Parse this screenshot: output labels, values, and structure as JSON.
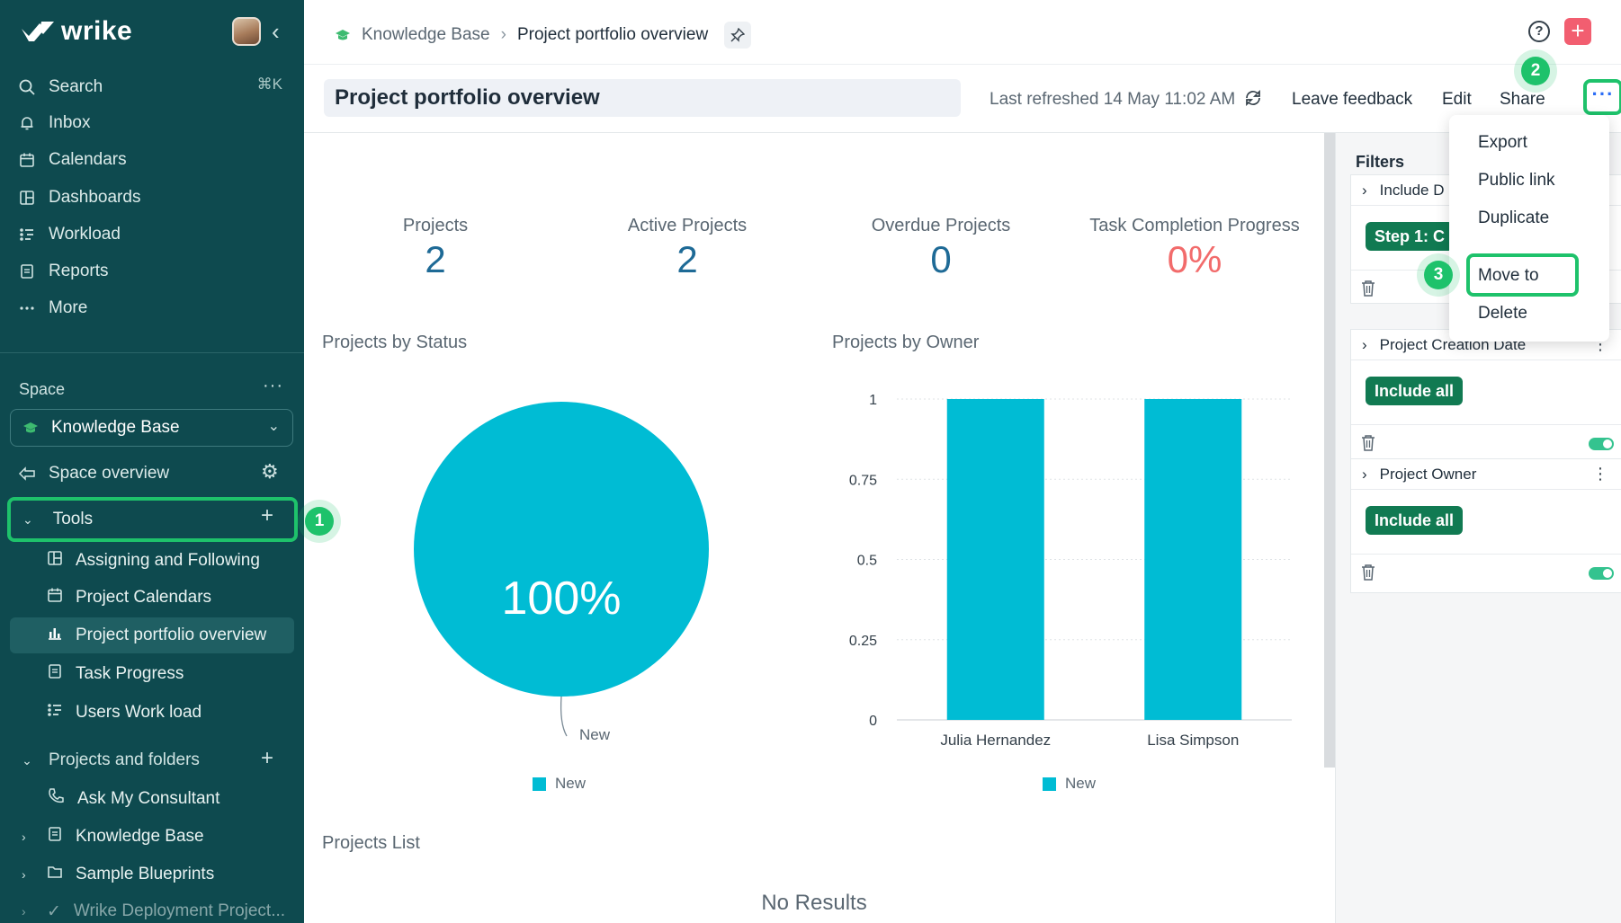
{
  "app": {
    "brand": "wrike"
  },
  "sidebar": {
    "search_label": "Search",
    "search_shortcut": "⌘K",
    "nav": [
      {
        "label": "Inbox",
        "icon": "bell-icon"
      },
      {
        "label": "Calendars",
        "icon": "calendar-icon"
      },
      {
        "label": "Dashboards",
        "icon": "dashboard-icon"
      },
      {
        "label": "Workload",
        "icon": "workload-icon"
      },
      {
        "label": "Reports",
        "icon": "reports-icon"
      },
      {
        "label": "More",
        "icon": "more-dots-icon"
      }
    ],
    "space_label": "Space",
    "space_name": "Knowledge Base",
    "space_overview": "Space overview",
    "tools_label": "Tools",
    "tools_items": [
      {
        "label": "Assigning and Following"
      },
      {
        "label": "Project Calendars"
      },
      {
        "label": "Project portfolio overview",
        "active": true
      },
      {
        "label": "Task Progress"
      },
      {
        "label": "Users Work load"
      }
    ],
    "projects_label": "Projects and folders",
    "project_items": [
      {
        "label": "Ask My Consultant"
      },
      {
        "label": "Knowledge Base"
      },
      {
        "label": "Sample Blueprints"
      },
      {
        "label": "Wrike Deployment Project..."
      }
    ]
  },
  "header": {
    "breadcrumb_space": "Knowledge Base",
    "breadcrumb_page": "Project portfolio overview",
    "title": "Project portfolio overview",
    "last_refreshed": "Last refreshed 14 May 11:02 AM",
    "leave_feedback": "Leave feedback",
    "edit": "Edit",
    "share": "Share",
    "more": "···"
  },
  "badges": {
    "b1": "1",
    "b2": "2",
    "b3": "3"
  },
  "kpis": [
    {
      "label": "Projects",
      "value": "2"
    },
    {
      "label": "Active Projects",
      "value": "2"
    },
    {
      "label": "Overdue Projects",
      "value": "0"
    },
    {
      "label": "Task Completion Progress",
      "value": "0%"
    }
  ],
  "sections": {
    "status": "Projects by Status",
    "owner": "Projects by Owner",
    "list": "Projects List",
    "no_results": "No Results"
  },
  "chart_data": [
    {
      "type": "pie",
      "title": "Projects by Status",
      "slices": [
        {
          "label": "New",
          "value": 100,
          "display": "100%"
        }
      ],
      "legend": [
        "New"
      ],
      "colors": [
        "#00bcd4"
      ]
    },
    {
      "type": "bar",
      "title": "Projects by Owner",
      "categories": [
        "Julia Hernandez",
        "Lisa Simpson"
      ],
      "series": [
        {
          "name": "New",
          "values": [
            1,
            1
          ]
        }
      ],
      "ylim": [
        0,
        1
      ],
      "yticks": [
        "0",
        "0.25",
        "0.5",
        "0.75",
        "1"
      ],
      "legend": [
        "New"
      ],
      "colors": [
        "#00bcd4"
      ]
    }
  ],
  "filters": {
    "title": "Filters",
    "cards": [
      {
        "header": "Include D",
        "pill": "Step 1: C"
      },
      {
        "header": "Project Creation Date",
        "pill": "Include all"
      },
      {
        "header": "Project Owner",
        "pill": "Include all"
      }
    ]
  },
  "menu": {
    "items": [
      "Export",
      "Public link",
      "Duplicate",
      "Move to",
      "Delete"
    ]
  },
  "colors": {
    "sidebar": "#0e4a4f",
    "accent": "#1ec26b",
    "chart": "#00bcd4",
    "pill": "#117a52",
    "danger": "#f26b6b"
  }
}
